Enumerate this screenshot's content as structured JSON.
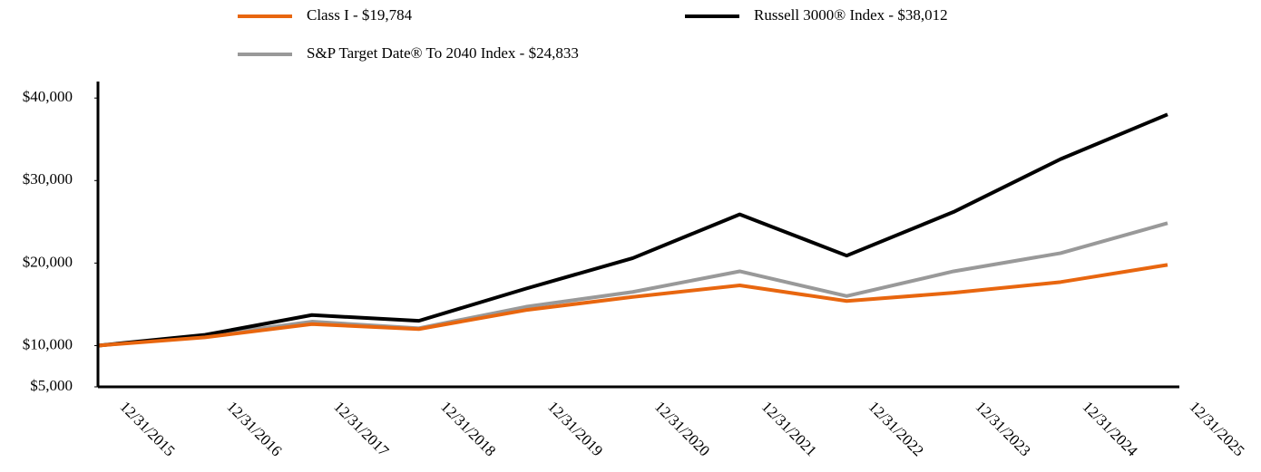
{
  "chart_data": {
    "type": "line",
    "categories": [
      "12/31/2015",
      "12/31/2016",
      "12/31/2017",
      "12/31/2018",
      "12/31/2019",
      "12/31/2020",
      "12/31/2021",
      "12/31/2022",
      "12/31/2023",
      "12/31/2024",
      "12/31/2025"
    ],
    "series": [
      {
        "name": "Class I - $19,784",
        "color": "#e8660f",
        "values": [
          10000,
          11000,
          12600,
          12000,
          14300,
          15900,
          17300,
          15400,
          16400,
          17700,
          19784
        ]
      },
      {
        "name": "Russell 3000® Index - $38,012",
        "color": "#000000",
        "values": [
          10000,
          11300,
          13700,
          13000,
          16900,
          20600,
          25900,
          20900,
          26200,
          32600,
          38012
        ]
      },
      {
        "name": "S&P Target Date® To 2040 Index - $24,833",
        "color": "#999999",
        "values": [
          10000,
          11200,
          12900,
          12100,
          14700,
          16500,
          19000,
          16000,
          19000,
          21200,
          24833
        ]
      }
    ],
    "ylim": [
      5000,
      42000
    ],
    "yticks": [
      {
        "value": 5000,
        "label": "$5,000"
      },
      {
        "value": 10000,
        "label": "$10,000"
      },
      {
        "value": 20000,
        "label": "$20,000"
      },
      {
        "value": 30000,
        "label": "$30,000"
      },
      {
        "value": 40000,
        "label": "$40,000"
      }
    ],
    "grid": false
  }
}
